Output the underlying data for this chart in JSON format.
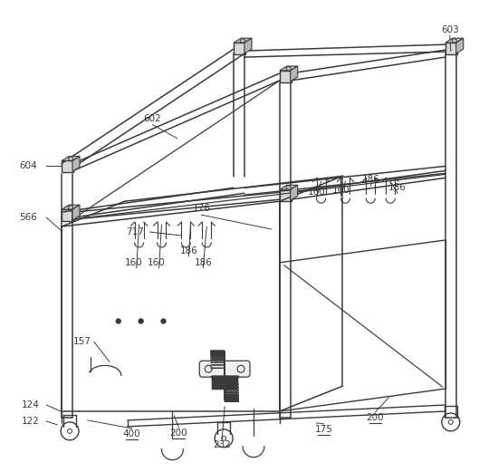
{
  "bg": "#ffffff",
  "lc": "#3a3a3a",
  "lw": 1.0,
  "fig_w": 5.5,
  "fig_h": 5.21
}
